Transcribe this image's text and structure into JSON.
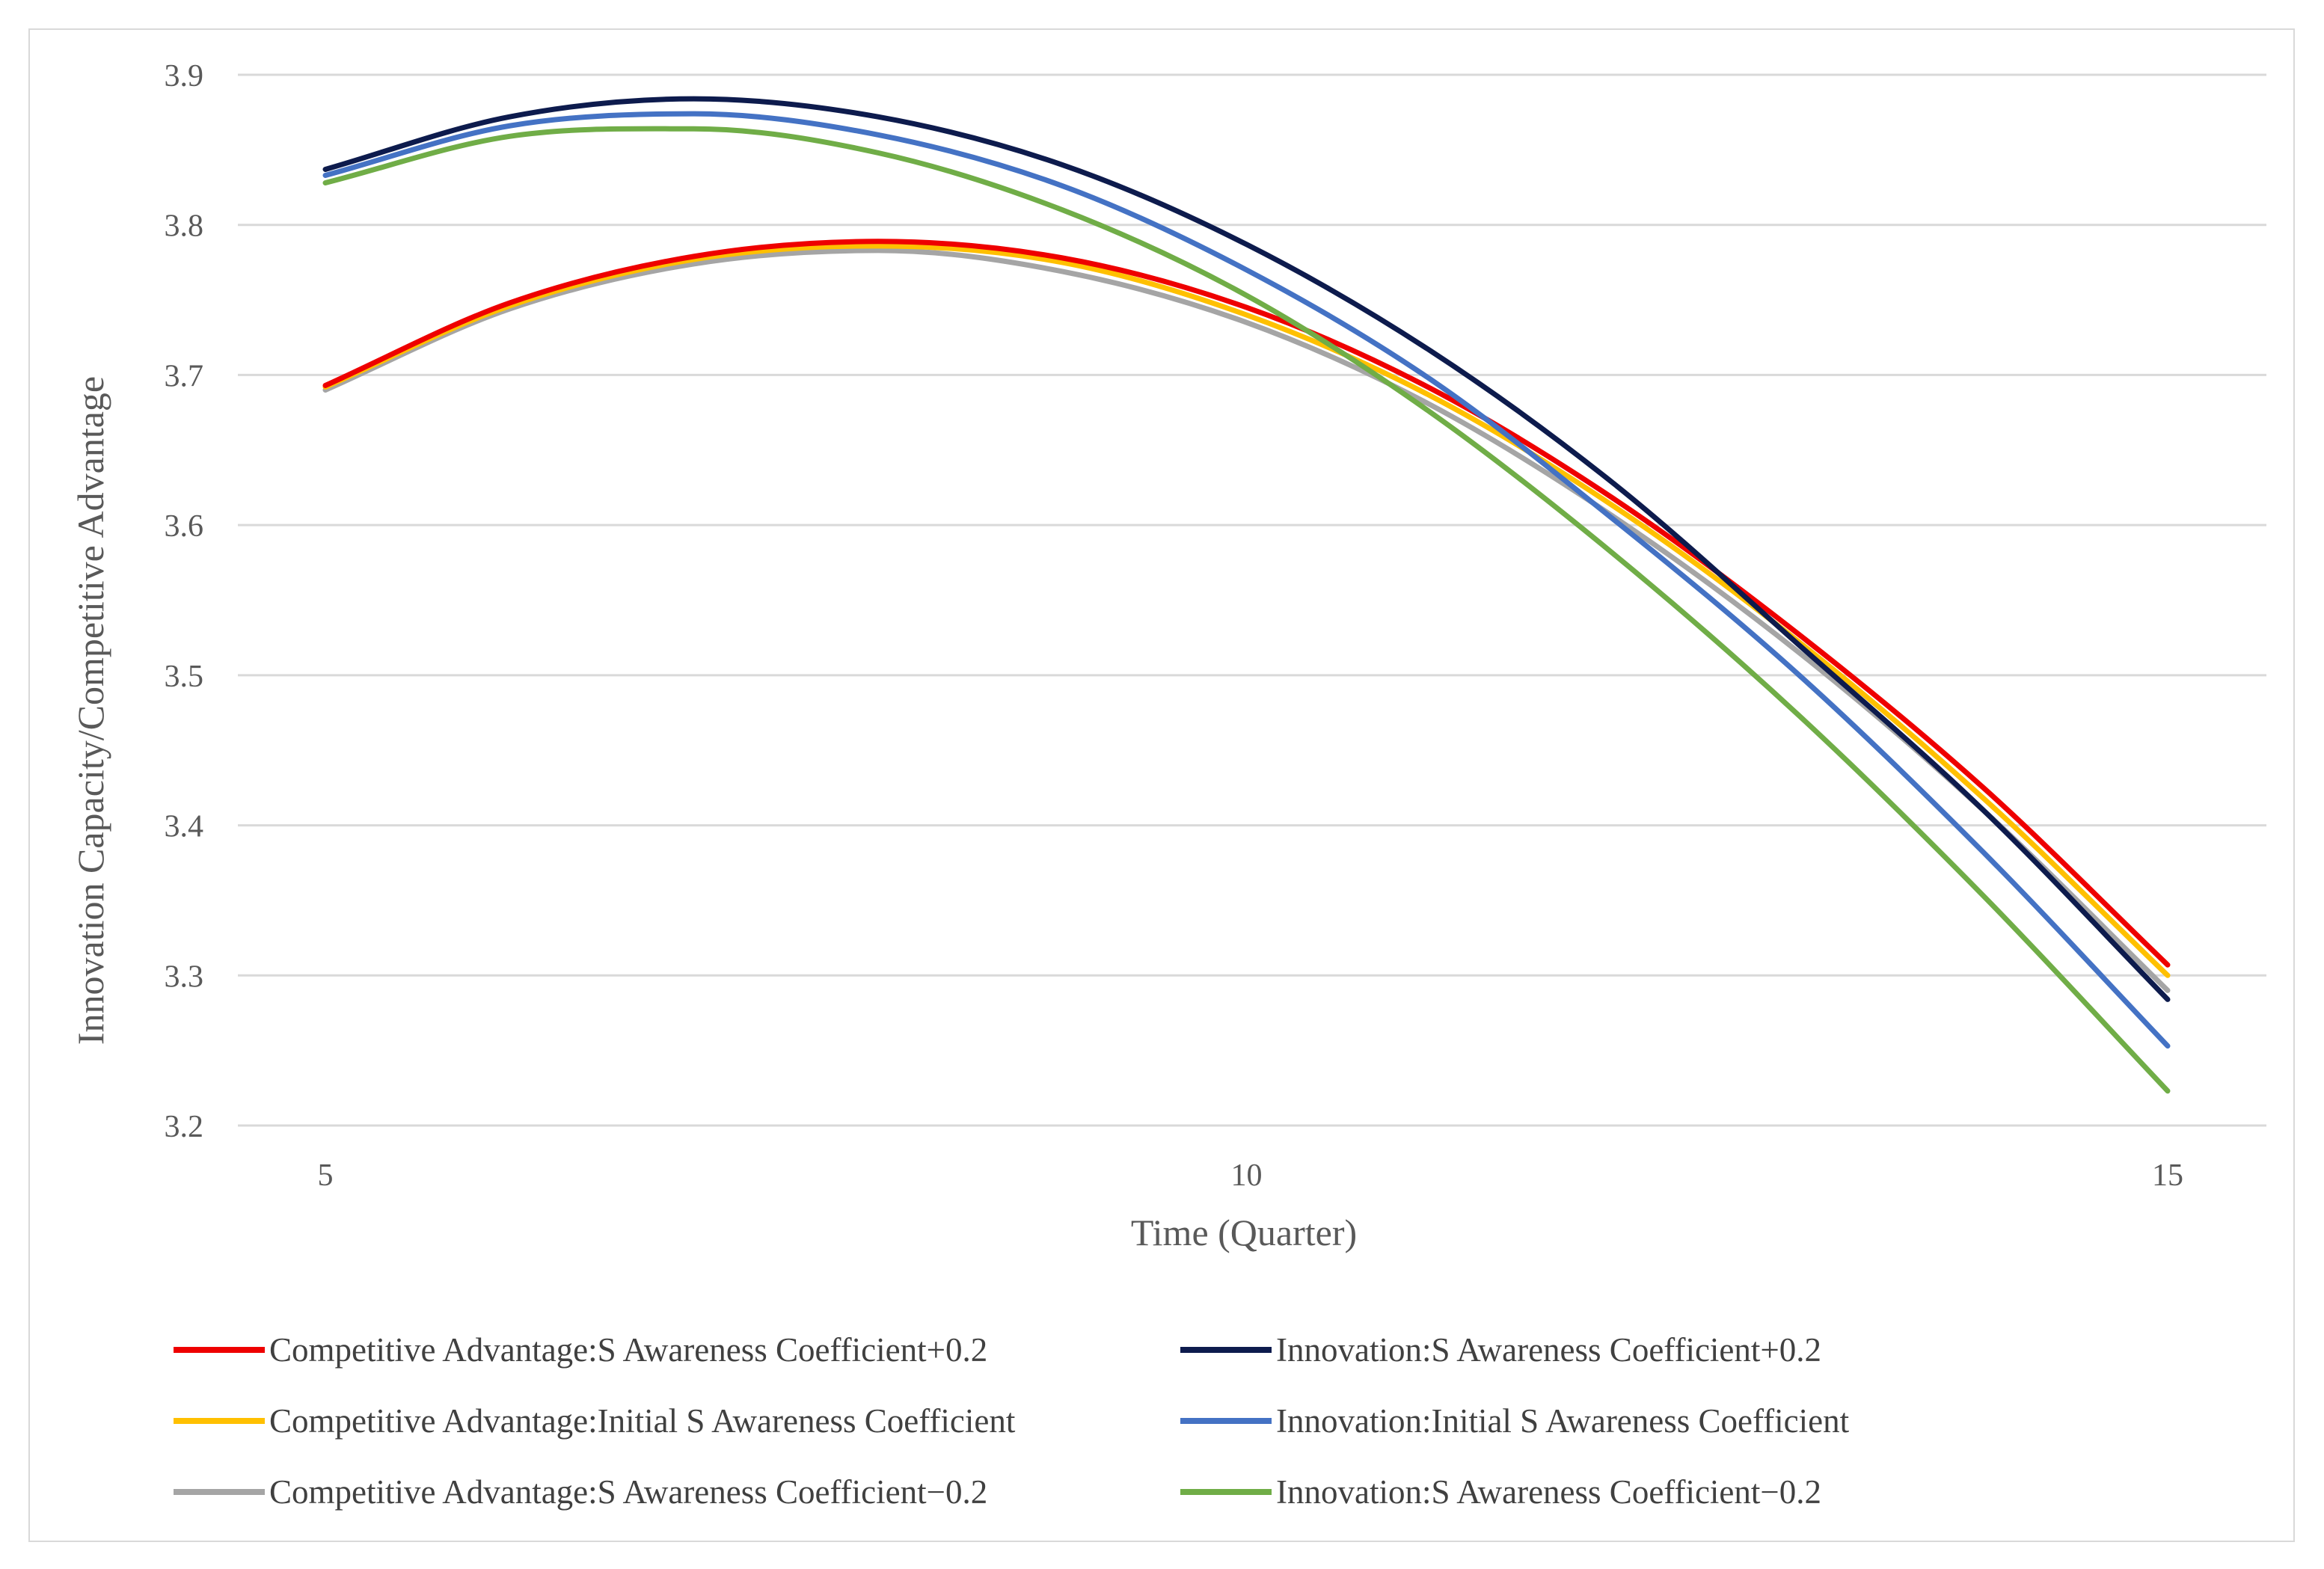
{
  "chart_data": {
    "type": "line",
    "xlabel": "Time (Quarter)",
    "ylabel": "Innovation Capacity/Competitive Advantage",
    "xlim": [
      5,
      15
    ],
    "ylim": [
      3.2,
      3.9
    ],
    "x": [
      5,
      6,
      7,
      8,
      9,
      10,
      11,
      12,
      13,
      14,
      15
    ],
    "x_ticks": [
      "5",
      "10",
      "15"
    ],
    "x_tick_values": [
      5,
      10,
      15
    ],
    "y_ticks": [
      "3.2",
      "3.3",
      "3.4",
      "3.5",
      "3.6",
      "3.7",
      "3.8",
      "3.9"
    ],
    "y_tick_values": [
      3.2,
      3.3,
      3.4,
      3.5,
      3.6,
      3.7,
      3.8,
      3.9
    ],
    "grid": "horizontal",
    "legend_position": "bottom",
    "series": [
      {
        "name": "Competitive Advantage:S Awareness Coefficient+0.2",
        "color": "#ee0000",
        "values": [
          3.693,
          3.748,
          3.779,
          3.789,
          3.778,
          3.745,
          3.691,
          3.617,
          3.527,
          3.425,
          3.307
        ]
      },
      {
        "name": "Innovation:S Awareness Coefficient+0.2",
        "color": "#0d1b4d",
        "values": [
          3.837,
          3.872,
          3.884,
          3.872,
          3.84,
          3.787,
          3.716,
          3.627,
          3.52,
          3.41,
          3.284
        ]
      },
      {
        "name": "Competitive Advantage:Initial S Awareness Coefficient",
        "color": "#ffc000",
        "values": [
          3.692,
          3.746,
          3.777,
          3.786,
          3.775,
          3.74,
          3.686,
          3.612,
          3.522,
          3.418,
          3.3
        ]
      },
      {
        "name": "Innovation:Initial S Awareness Coefficient",
        "color": "#4472c4",
        "values": [
          3.833,
          3.866,
          3.874,
          3.86,
          3.826,
          3.77,
          3.697,
          3.603,
          3.5,
          3.382,
          3.253
        ]
      },
      {
        "name": "Competitive Advantage:S Awareness Coefficient−0.2",
        "color": "#a5a5a5",
        "values": [
          3.69,
          3.744,
          3.774,
          3.783,
          3.769,
          3.735,
          3.68,
          3.605,
          3.515,
          3.41,
          3.29
        ]
      },
      {
        "name": "Innovation:S Awareness Coefficient−0.2",
        "color": "#70ad47",
        "values": [
          3.828,
          3.859,
          3.864,
          3.848,
          3.81,
          3.753,
          3.675,
          3.58,
          3.473,
          3.353,
          3.223
        ]
      }
    ]
  }
}
